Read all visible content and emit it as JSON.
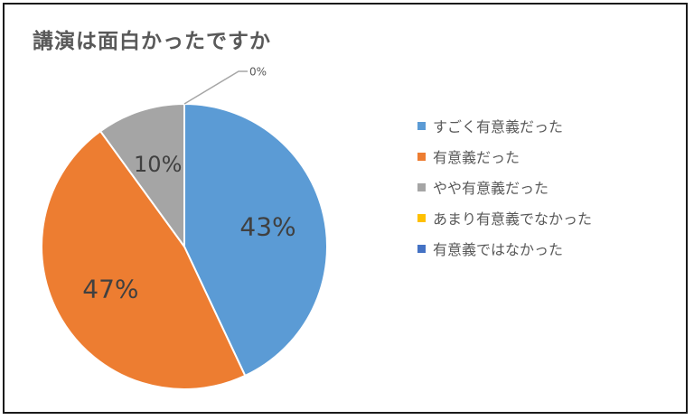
{
  "chart_data": {
    "type": "pie",
    "title": "講演は面白かったですか",
    "legend_position": "right",
    "categories": [
      "すごく有意義だった",
      "有意義だった",
      "やや有意義だった",
      "あまり有意義でなかった",
      "有意義ではなかった"
    ],
    "values": [
      43,
      47,
      10,
      0,
      0
    ],
    "labels": [
      "43%",
      "47%",
      "10%",
      "0%",
      ""
    ],
    "colors": [
      "#5B9BD5",
      "#ED7D31",
      "#A5A5A5",
      "#FFC000",
      "#4472C4"
    ]
  }
}
